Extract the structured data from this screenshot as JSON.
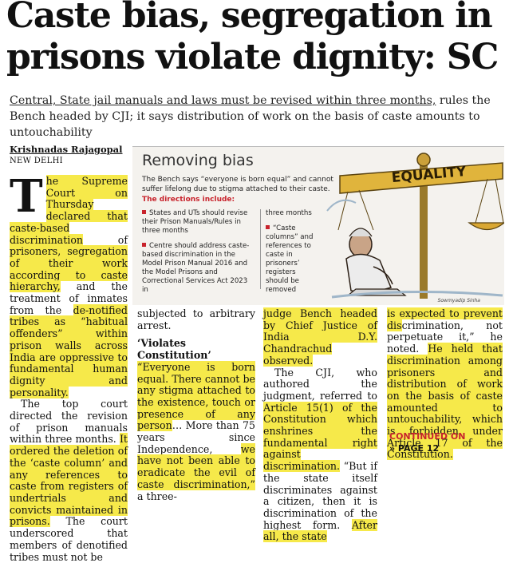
{
  "headline": "Caste bias, segregation in prisons violate dignity: SC",
  "deck": {
    "underlined": "Central, State jail manuals and laws must be revised within three months,",
    "rest": " rules the Bench headed by CJI; it says distribution of work on the basis of caste amounts to untouchability"
  },
  "byline": "Krishnadas Rajagopal",
  "dateline": "NEW DELHI",
  "sidebar": {
    "title": "Removing bias",
    "intro": "The Bench says “everyone is born equal” and cannot suffer lifelong due to stigma attached to their caste.",
    "directions_label": "The directions include:",
    "items_left": [
      "States and UTs should revise their Prison Manuals/Rules in three months",
      "Centre should address caste-based discrimination in the Model Prison Manual 2016 and the Model Prisons and Correctional Services Act 2023 in"
    ],
    "items_right_lead": "three months",
    "items_right": [
      "“Caste columns” and references to caste in prisoners’ registers should be removed"
    ],
    "scale_label": "EQUALITY",
    "artist": "Sowmyadip Sinha",
    "accent_color": "#c8232c",
    "highlight_color": "#f6e94a"
  },
  "col1": {
    "dropcap": "T",
    "p1_hl1": "he Supreme Court on Thursday declared that caste-based discrimination",
    "p1_t1": " of ",
    "p1_hl2": "prisoners, segregation of their work according to caste hierarchy,",
    "p1_t2": " and the treatment of inmates from the ",
    "p1_hl3": "de-notified tribes as “habitual offenders” within prison walls across India are oppressive to fundamental human dignity and personality.",
    "p2_t1": "The top court directed the revision of prison manuals within three months. ",
    "p2_hl1": "It ordered the deletion of the ‘caste column’ and any references to caste from registers of undertrials and convicts maintained in prisons.",
    "p2_t2": " The court underscored that members of denotified tribes must not be"
  },
  "col2": {
    "t1": "subjected to arbitrary arrest.",
    "subhead": "‘Violates Constitution’",
    "hl1": "“Everyone is born equal. There cannot be any stigma attached to the existence, touch or presence of any person",
    "t2": "… More than 75 years since Independence, ",
    "hl2": "we have not been able to eradicate the evil of caste discrimination,”",
    "t3": " a three-"
  },
  "col3": {
    "hl1": "judge Bench headed by Chief Justice of India D.Y. Chandrachud observed.",
    "t1": "The CJI, who authored the judgment, referred to ",
    "hl2": "Article 15(1) of the Constitution which enshrines the fundamental right against discrimination.",
    "t2": " “But if the state itself discriminates against a citizen, then it is discrimination of the highest form. ",
    "hl3": "After all, the state"
  },
  "col4": {
    "hl1": "is expected to prevent dis",
    "t1": "crimination, not perpetuate it,” he noted. ",
    "hl2": "He held that discrimination among prisoners and distribution of work on the basis of caste amounted to untouchability, which is forbidden under Article 17 of the Constitution.",
    "continued": "CONTINUED ON",
    "page_ref": "» PAGE 12"
  }
}
